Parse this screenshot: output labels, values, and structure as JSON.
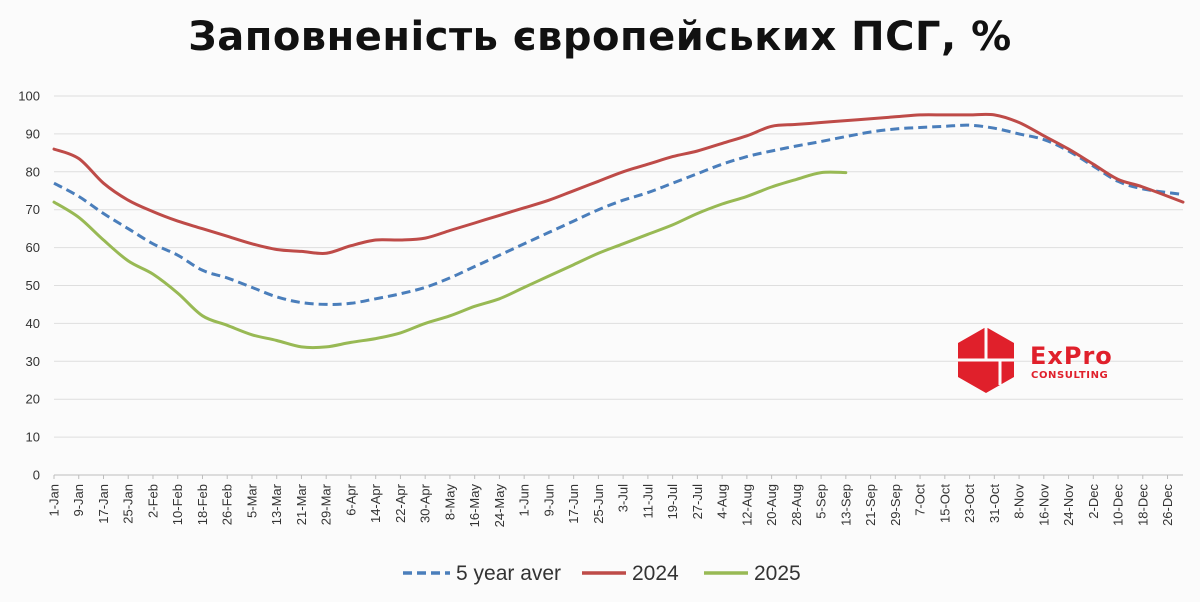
{
  "chart_data": {
    "type": "line",
    "title": "Заповненість європейських ПСГ, %",
    "xlabel": "",
    "ylabel": "",
    "ylim": [
      0,
      100
    ],
    "yticks": [
      0,
      10,
      20,
      30,
      40,
      50,
      60,
      70,
      80,
      90,
      100
    ],
    "grid": true,
    "legend_position": "bottom",
    "x_ticks": [
      "1-Jan",
      "9-Jan",
      "17-Jan",
      "25-Jan",
      "2-Feb",
      "10-Feb",
      "18-Feb",
      "26-Feb",
      "5-Mar",
      "13-Mar",
      "21-Mar",
      "29-Mar",
      "6-Apr",
      "14-Apr",
      "22-Apr",
      "30-Apr",
      "8-May",
      "16-May",
      "24-May",
      "1-Jun",
      "9-Jun",
      "17-Jun",
      "25-Jun",
      "3-Jul",
      "11-Jul",
      "19-Jul",
      "27-Jul",
      "4-Aug",
      "12-Aug",
      "20-Aug",
      "28-Aug",
      "5-Sep",
      "13-Sep",
      "21-Sep",
      "29-Sep",
      "7-Oct",
      "15-Oct",
      "23-Oct",
      "31-Oct",
      "8-Nov",
      "16-Nov",
      "24-Nov",
      "2-Dec",
      "10-Dec",
      "18-Dec",
      "26-Dec"
    ],
    "x_tick_day_step": 8,
    "series": [
      {
        "name": "5 year aver",
        "color": "#4a7ebb",
        "dash": true,
        "values": [
          77,
          73.5,
          69,
          65,
          61,
          58,
          54,
          52,
          49.5,
          47,
          45.5,
          45,
          45.3,
          46.5,
          47.8,
          49.5,
          52,
          55,
          58,
          61,
          64,
          67,
          70,
          72.5,
          74.5,
          77,
          79.5,
          82,
          84,
          85.5,
          86.8,
          88,
          89.3,
          90.5,
          91.3,
          91.7,
          92,
          92.3,
          91.5,
          90,
          88.5,
          85.5,
          81.5,
          77.5,
          75.5,
          74
        ]
      },
      {
        "name": "2024",
        "color": "#be4b48",
        "dash": false,
        "values": [
          86,
          83.5,
          77,
          72.5,
          69.5,
          67,
          65,
          63,
          61,
          59.5,
          59,
          58.5,
          60.5,
          62,
          62,
          62.5,
          64.5,
          66.5,
          68.5,
          70.5,
          72.5,
          75,
          77.5,
          80,
          82,
          84,
          85.5,
          87.5,
          89.5,
          92,
          92.5,
          93,
          93.5,
          94,
          94.5,
          95,
          95,
          95,
          95,
          93,
          89.5,
          86,
          82,
          78,
          76,
          72
        ]
      },
      {
        "name": "2025",
        "color": "#98b954",
        "dash": false,
        "values": [
          72,
          68,
          62,
          56.5,
          53,
          48,
          42,
          39.5,
          37,
          35.5,
          33.8,
          33.8,
          35,
          36,
          37.5,
          40,
          42,
          44.5,
          46.5,
          49.5,
          52.5,
          55.5,
          58.5,
          61,
          63.5,
          66,
          69,
          71.5,
          73.5,
          76,
          78,
          79.8,
          79.8
        ]
      }
    ]
  },
  "logo": {
    "name": "ExPro",
    "sub": "CONSULTING",
    "color": "#e0202b"
  }
}
